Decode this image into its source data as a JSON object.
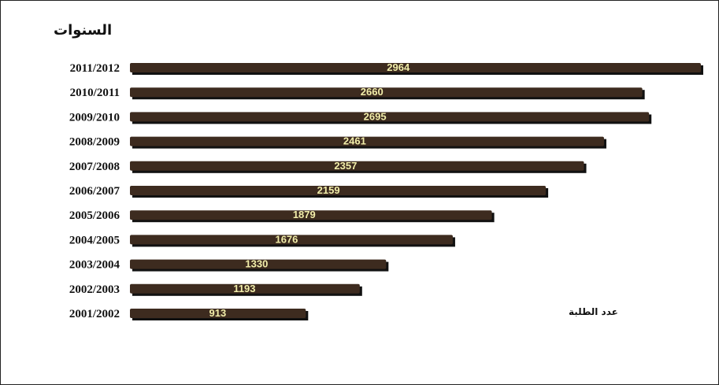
{
  "chart_data": {
    "type": "bar",
    "orientation": "horizontal",
    "ylabel": "السنوات",
    "series": [
      {
        "name": "عدد الطلبة",
        "values": [
          2964,
          2660,
          2695,
          2461,
          2357,
          2159,
          1879,
          1676,
          1330,
          1193,
          913
        ]
      }
    ],
    "categories": [
      "2011/2012",
      "2010/2011",
      "2009/2010",
      "2008/2009",
      "2007/2008",
      "2006/2007",
      "2005/2006",
      "2004/2005",
      "2003/2004",
      "2002/2003",
      "2001/2002"
    ],
    "grid": false,
    "legend_position": "bottom-right",
    "colors": {
      "bar": "#3d2b1f",
      "bar_shadow": "#111111",
      "value_text": "#f2eeaa"
    }
  }
}
